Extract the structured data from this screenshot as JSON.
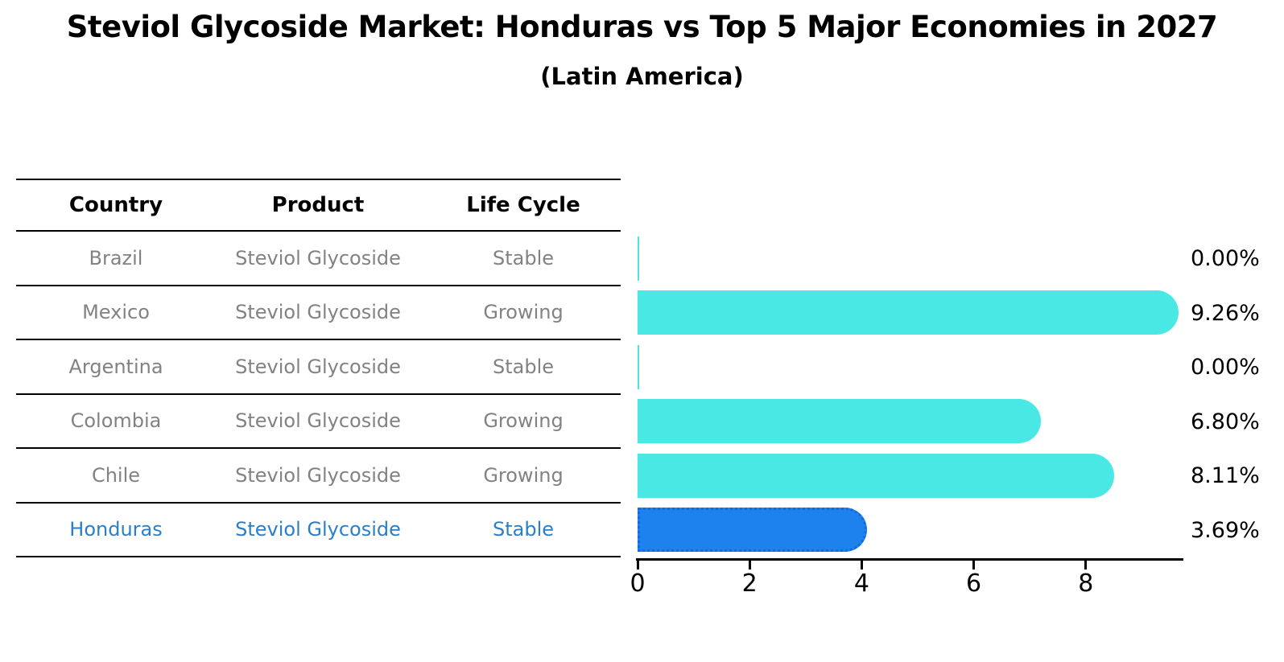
{
  "title": "Steviol Glycoside Market: Honduras vs Top 5 Major Economies in 2027",
  "subtitle": "(Latin America)",
  "table": {
    "headers": [
      "Country",
      "Product",
      "Life Cycle"
    ],
    "rows": [
      {
        "country": "Brazil",
        "product": "Steviol Glycoside",
        "life_cycle": "Stable",
        "highlighted": false
      },
      {
        "country": "Mexico",
        "product": "Steviol Glycoside",
        "life_cycle": "Growing",
        "highlighted": false
      },
      {
        "country": "Argentina",
        "product": "Steviol Glycoside",
        "life_cycle": "Stable",
        "highlighted": false
      },
      {
        "country": "Colombia",
        "product": "Steviol Glycoside",
        "life_cycle": "Growing",
        "highlighted": false
      },
      {
        "country": "Chile",
        "product": "Steviol Glycoside",
        "life_cycle": "Growing",
        "highlighted": false
      },
      {
        "country": "Honduras",
        "product": "Steviol Glycoside",
        "life_cycle": "Stable",
        "highlighted": true
      }
    ]
  },
  "chart_data": {
    "type": "bar",
    "orientation": "horizontal",
    "title": "Steviol Glycoside Market: Honduras vs Top 5 Major Economies in 2027",
    "subtitle": "(Latin America)",
    "categories": [
      "Brazil",
      "Mexico",
      "Argentina",
      "Colombia",
      "Chile",
      "Honduras"
    ],
    "values": [
      0.0,
      9.26,
      0.0,
      6.8,
      8.11,
      3.69
    ],
    "value_labels": [
      "0.00%",
      "9.26%",
      "0.00%",
      "6.80%",
      "8.11%",
      "3.69%"
    ],
    "x_ticks": [
      0,
      2,
      4,
      6,
      8
    ],
    "xlim": [
      0,
      9.75
    ],
    "highlight_index": 5,
    "grid": false,
    "legend": false
  },
  "colors": {
    "bar_default": "#4ae8e4",
    "bar_highlight": "#1e82ee",
    "bar_highlight_border": "#1569da",
    "highlight_text": "#2d7ec9",
    "table_text": "#828282",
    "axis": "#000000"
  }
}
